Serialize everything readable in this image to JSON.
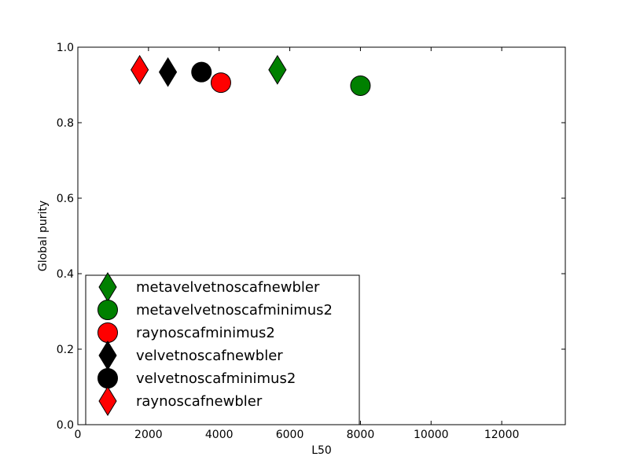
{
  "chart_data": {
    "type": "scatter",
    "title": "",
    "xlabel": "L50",
    "ylabel": "Global purity",
    "xlim": [
      0,
      13800
    ],
    "ylim": [
      0.0,
      1.0
    ],
    "xticks": [
      0,
      2000,
      4000,
      6000,
      8000,
      10000,
      12000
    ],
    "yticks": [
      0.0,
      0.2,
      0.4,
      0.6,
      0.8,
      1.0
    ],
    "xtick_labels": [
      "0",
      "2000",
      "4000",
      "6000",
      "8000",
      "10000",
      "12000"
    ],
    "ytick_labels": [
      "0.0",
      "0.2",
      "0.4",
      "0.6",
      "0.8",
      "1.0"
    ],
    "grid": false,
    "legend_position": "lower-left",
    "series": [
      {
        "name": "metavelvetnoscafnewbler",
        "marker": "diamond",
        "color": "#008000",
        "points": [
          {
            "x": 5650,
            "y": 0.94
          }
        ]
      },
      {
        "name": "metavelvetnoscafminimus2",
        "marker": "circle",
        "color": "#008000",
        "points": [
          {
            "x": 8000,
            "y": 0.898
          }
        ]
      },
      {
        "name": "raynoscafminimus2",
        "marker": "circle",
        "color": "#ff0000",
        "points": [
          {
            "x": 4050,
            "y": 0.906
          }
        ]
      },
      {
        "name": "velvetnoscafnewbler",
        "marker": "diamond",
        "color": "#000000",
        "points": [
          {
            "x": 2550,
            "y": 0.934
          }
        ]
      },
      {
        "name": "velvetnoscafminimus2",
        "marker": "circle",
        "color": "#000000",
        "points": [
          {
            "x": 3500,
            "y": 0.934
          }
        ]
      },
      {
        "name": "raynoscafnewbler",
        "marker": "diamond",
        "color": "#ff0000",
        "points": [
          {
            "x": 1750,
            "y": 0.94
          }
        ]
      }
    ]
  }
}
